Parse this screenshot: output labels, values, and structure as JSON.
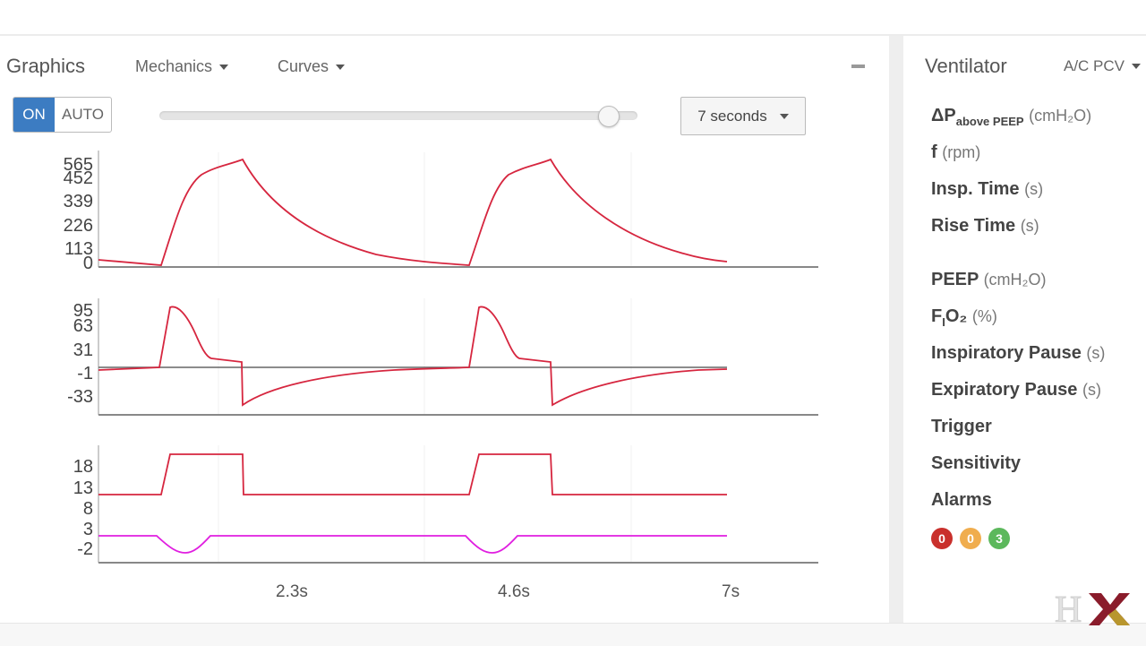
{
  "graphics": {
    "title": "Graphics",
    "mechanics_label": "Mechanics",
    "curves_label": "Curves",
    "toggle_on": "ON",
    "toggle_auto": "AUTO",
    "time_window": "7 seconds",
    "time_slider_value": 0.94,
    "x_ticks": [
      "2.3s",
      "4.6s",
      "7s"
    ],
    "charts": [
      {
        "y_ticks": [
          "565",
          "452",
          "339",
          "226",
          "113",
          "0"
        ]
      },
      {
        "y_ticks": [
          "95",
          "63",
          "31",
          "-1",
          "-33"
        ]
      },
      {
        "y_ticks": [
          "18",
          "13",
          "8",
          "3",
          "-2"
        ]
      }
    ]
  },
  "ventilator": {
    "title": "Ventilator",
    "mode": "A/C PCV",
    "params": [
      {
        "label": "ΔP",
        "sub": "above PEEP",
        "unit": "(cmH₂O)"
      },
      {
        "label": "f",
        "unit": "(rpm)"
      },
      {
        "label": "Insp. Time",
        "unit": "(s)"
      },
      {
        "label": "Rise Time",
        "unit": "(s)"
      },
      {
        "label": "PEEP",
        "unit": "(cmH₂O)"
      },
      {
        "label": "F",
        "sub_small": "I",
        "label2": "O₂",
        "unit": "(%)"
      },
      {
        "label": "Inspiratory Pause",
        "unit": "(s)"
      },
      {
        "label": "Expiratory Pause",
        "unit": "(s)"
      },
      {
        "label": "Trigger"
      },
      {
        "label": "Sensitivity"
      },
      {
        "label": "Alarms"
      }
    ],
    "alarms": [
      {
        "count": "0",
        "color": "#c9302c"
      },
      {
        "count": "0",
        "color": "#f0ad4e"
      },
      {
        "count": "3",
        "color": "#5cb85c"
      }
    ]
  },
  "colors": {
    "accent": "#3c7cc2",
    "curve_primary": "#d6263f",
    "curve_secondary": "#e01ee0"
  }
}
